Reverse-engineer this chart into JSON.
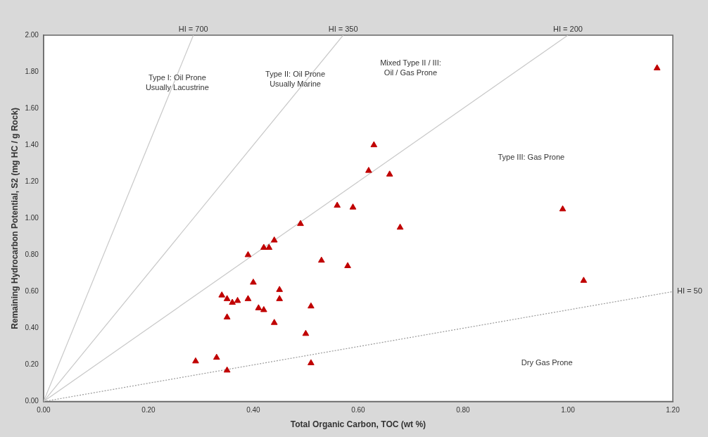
{
  "chart_data": {
    "type": "scatter",
    "xlabel": "Total Organic Carbon, TOC (wt %)",
    "ylabel": "Remaining Hydrocarbon Potential, S2 (mg HC / g Rock)",
    "xlim": [
      0,
      1.2
    ],
    "ylim": [
      0,
      2
    ],
    "xticks": [
      {
        "value": 0,
        "label": "0.00"
      },
      {
        "value": 0.2,
        "label": "0.20"
      },
      {
        "value": 0.4,
        "label": "0.40"
      },
      {
        "value": 0.6,
        "label": "0.60"
      },
      {
        "value": 0.8,
        "label": "0.80"
      },
      {
        "value": 1,
        "label": "1.00"
      },
      {
        "value": 1.2,
        "label": "1.20"
      }
    ],
    "yticks": [
      {
        "value": 0,
        "label": "0.00"
      },
      {
        "value": 0.2,
        "label": "0.20"
      },
      {
        "value": 0.4,
        "label": "0.40"
      },
      {
        "value": 0.6,
        "label": "0.60"
      },
      {
        "value": 0.8,
        "label": "0.80"
      },
      {
        "value": 1,
        "label": "1.00"
      },
      {
        "value": 1.2,
        "label": "1.20"
      },
      {
        "value": 1.4,
        "label": "1.40"
      },
      {
        "value": 1.6,
        "label": "1.60"
      },
      {
        "value": 1.8,
        "label": "1.80"
      },
      {
        "value": 2,
        "label": "2.00"
      }
    ],
    "grid": false,
    "legend": false,
    "marker": "triangle",
    "series": [
      {
        "color": "#c00000",
        "x": [
          0.29,
          0.33,
          0.35,
          0.34,
          0.35,
          0.35,
          0.36,
          0.37,
          0.39,
          0.39,
          0.4,
          0.41,
          0.42,
          0.42,
          0.43,
          0.44,
          0.44,
          0.45,
          0.45,
          0.49,
          0.5,
          0.51,
          0.51,
          0.53,
          0.56,
          0.58,
          0.59,
          0.62,
          0.63,
          0.66,
          0.68,
          0.99,
          1.03,
          1.17
        ],
        "values": [
          0.22,
          0.24,
          0.17,
          0.58,
          0.56,
          0.46,
          0.54,
          0.55,
          0.56,
          0.8,
          0.65,
          0.51,
          0.5,
          0.84,
          0.84,
          0.88,
          0.43,
          0.56,
          0.61,
          0.97,
          0.37,
          0.52,
          0.21,
          0.77,
          1.07,
          0.74,
          1.06,
          1.26,
          1.4,
          1.24,
          0.95,
          1.05,
          0.66,
          1.82
        ]
      },
      {
        "type": "line",
        "marker": "none",
        "name": "HI = 700",
        "color": "#c8c8c8",
        "x": [
          0,
          0.2857
        ],
        "values": [
          0,
          2
        ]
      },
      {
        "type": "line",
        "marker": "none",
        "name": "HI = 350",
        "color": "#c8c8c8",
        "x": [
          0,
          0.5714
        ],
        "values": [
          0,
          2
        ]
      },
      {
        "type": "line",
        "marker": "none",
        "name": "HI = 200",
        "color": "#c8c8c8",
        "x": [
          0,
          1
        ],
        "values": [
          0,
          2
        ]
      },
      {
        "type": "line",
        "marker": "none",
        "name": "HI = 50",
        "color": "#999999",
        "line_style": "dotted",
        "x": [
          0,
          1.2
        ],
        "values": [
          0,
          0.6
        ]
      }
    ],
    "annotations": [
      "Type I: Oil Prone\nUsually Lacustrine",
      "Type II: Oil Prone\nUsually Marine",
      "Mixed Type II / III:\nOil / Gas Prone",
      "Type III: Gas Prone",
      "Dry Gas Prone"
    ]
  }
}
